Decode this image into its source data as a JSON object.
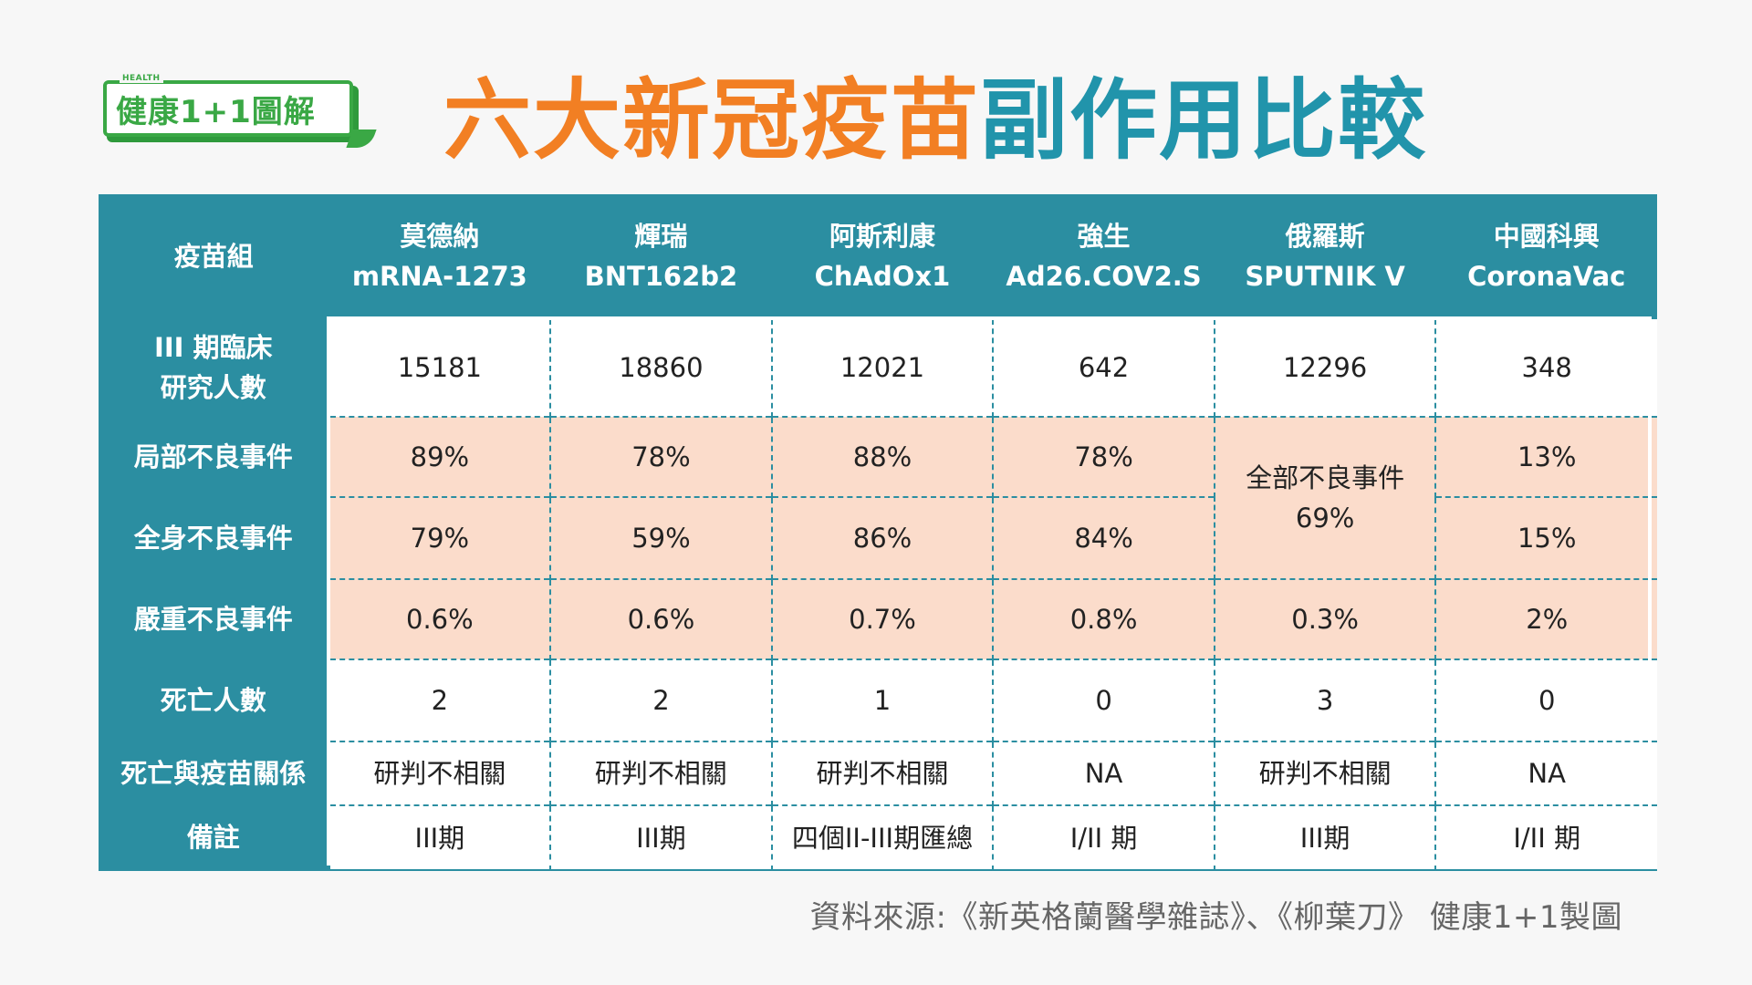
{
  "logo": {
    "small_text": "HEALTH",
    "text": "健康1+1圖解"
  },
  "title": {
    "part1": "六大新冠疫苗",
    "part2": "副作用比較"
  },
  "table": {
    "corner_label": "疫苗組",
    "columns": [
      {
        "name": "莫德納",
        "code": "mRNA-1273"
      },
      {
        "name": "輝瑞",
        "code": "BNT162b2"
      },
      {
        "name": "阿斯利康",
        "code": "ChAdOx1"
      },
      {
        "name": "強生",
        "code": "Ad26.COV2.S"
      },
      {
        "name": "俄羅斯",
        "code": "SPUTNIK V"
      },
      {
        "name": "中國科興",
        "code": "CoronaVac"
      }
    ],
    "rows": {
      "trial": {
        "label_line1": "III 期臨床",
        "label_line2": "研究人數",
        "values": [
          "15181",
          "18860",
          "12021",
          "642",
          "12296",
          "348"
        ]
      },
      "local": {
        "label": "局部不良事件",
        "values": [
          "89%",
          "78%",
          "88%",
          "78%",
          "13%"
        ]
      },
      "merged_sputnik": {
        "line1": "全部不良事件",
        "line2": "69%"
      },
      "systemic": {
        "label": "全身不良事件",
        "values": [
          "79%",
          "59%",
          "86%",
          "84%",
          "15%"
        ]
      },
      "severe": {
        "label": "嚴重不良事件",
        "values": [
          "0.6%",
          "0.6%",
          "0.7%",
          "0.8%",
          "0.3%",
          "2%"
        ]
      },
      "deaths": {
        "label": "死亡人數",
        "values": [
          "2",
          "2",
          "1",
          "0",
          "3",
          "0"
        ]
      },
      "relation": {
        "label": "死亡與疫苗關係",
        "values": [
          "研判不相關",
          "研判不相關",
          "研判不相關",
          "NA",
          "研判不相關",
          "NA"
        ]
      },
      "notes": {
        "label": "備註",
        "values": [
          "III期",
          "III期",
          "四個II-III期匯總",
          "I/II 期",
          "III期",
          "I/II 期"
        ]
      }
    }
  },
  "source": "資料來源:《新英格蘭醫學雜誌》、《柳葉刀》  健康1+1製圖",
  "colors": {
    "teal": "#2b8ea1",
    "orange": "#f27f23",
    "blue": "#2194ab",
    "peach": "#fbdccb",
    "green": "#3aa845"
  }
}
